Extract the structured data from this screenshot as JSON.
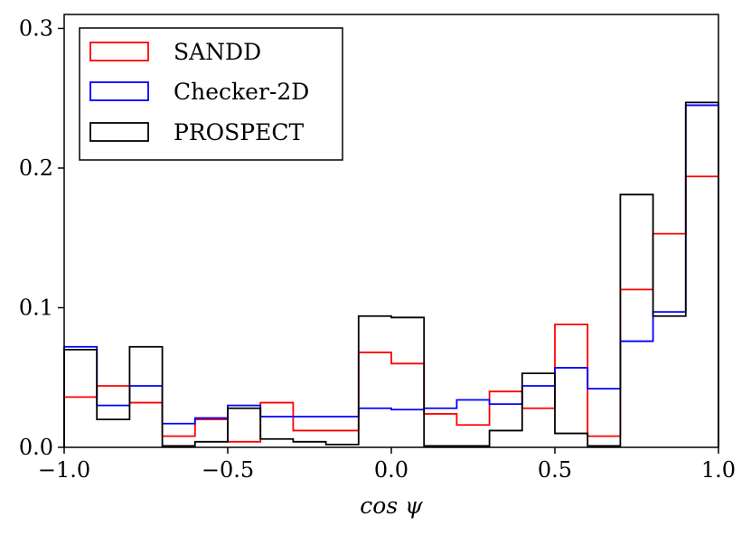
{
  "chart_data": {
    "type": "histogram-step",
    "title": "",
    "xlabel": "cos ψ",
    "ylabel": "",
    "xlim": [
      -1.0,
      1.0
    ],
    "ylim": [
      0.0,
      0.31
    ],
    "x_ticks": [
      -1.0,
      -0.5,
      0.0,
      0.5,
      1.0
    ],
    "x_tick_labels": [
      "−1.0",
      "−0.5",
      "0.0",
      "0.5",
      "1.0"
    ],
    "y_ticks": [
      0.0,
      0.1,
      0.2,
      0.3
    ],
    "y_tick_labels": [
      "0.0",
      "0.1",
      "0.2",
      "0.3"
    ],
    "bin_edges": [
      -1.0,
      -0.9,
      -0.8,
      -0.7,
      -0.6,
      -0.5,
      -0.4,
      -0.3,
      -0.2,
      -0.1,
      0.0,
      0.1,
      0.2,
      0.3,
      0.4,
      0.5,
      0.6,
      0.7,
      0.8,
      0.9,
      1.0
    ],
    "legend_position": "top-left",
    "series": [
      {
        "name": "SANDD",
        "color": "#ff0000",
        "values": [
          0.036,
          0.044,
          0.032,
          0.008,
          0.02,
          0.004,
          0.032,
          0.012,
          0.012,
          0.068,
          0.06,
          0.024,
          0.016,
          0.04,
          0.028,
          0.088,
          0.008,
          0.113,
          0.153,
          0.194
        ]
      },
      {
        "name": "Checker-2D",
        "color": "#0000ff",
        "values": [
          0.072,
          0.03,
          0.044,
          0.017,
          0.021,
          0.03,
          0.022,
          0.022,
          0.022,
          0.028,
          0.027,
          0.028,
          0.034,
          0.031,
          0.044,
          0.057,
          0.042,
          0.076,
          0.097,
          0.245
        ]
      },
      {
        "name": "PROSPECT",
        "color": "#000000",
        "values": [
          0.07,
          0.02,
          0.072,
          0.001,
          0.004,
          0.028,
          0.006,
          0.004,
          0.002,
          0.094,
          0.093,
          0.001,
          0.001,
          0.012,
          0.053,
          0.01,
          0.001,
          0.181,
          0.094,
          0.247
        ]
      }
    ]
  }
}
